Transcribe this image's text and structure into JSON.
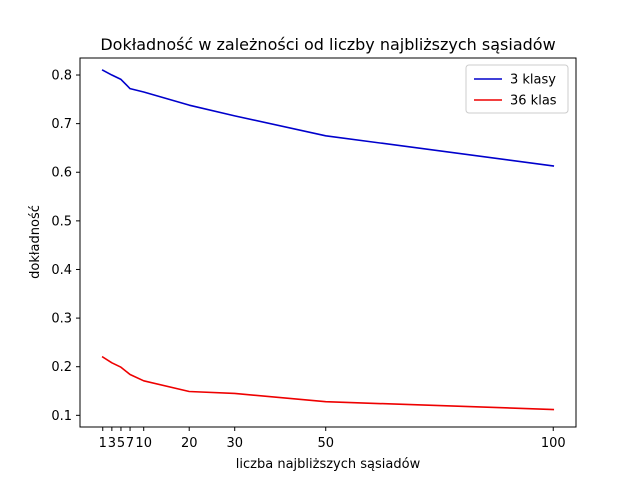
{
  "chart_data": {
    "type": "line",
    "title": "Dokładność w zależności od liczby najbliższych sąsiadów",
    "xlabel": "liczba najbliższych sąsiadów",
    "ylabel": "dokładność",
    "x": [
      1,
      3,
      5,
      7,
      10,
      20,
      30,
      50,
      100
    ],
    "xticks": [
      1,
      3,
      5,
      7,
      10,
      20,
      30,
      50,
      100
    ],
    "xtick_labels": [
      "1",
      "3",
      "5",
      "7",
      "10",
      "20",
      "30",
      "50",
      "100"
    ],
    "xlim": [
      -4,
      105
    ],
    "yticks": [
      0.1,
      0.2,
      0.3,
      0.4,
      0.5,
      0.6,
      0.7,
      0.8
    ],
    "ytick_labels": [
      "0.1",
      "0.2",
      "0.3",
      "0.4",
      "0.5",
      "0.6",
      "0.7",
      "0.8"
    ],
    "ylim": [
      0.076,
      0.835
    ],
    "grid": false,
    "legend_position": "top-right",
    "series": [
      {
        "name": "3 klasy",
        "color": "#0000cc",
        "values": [
          0.81,
          0.8,
          0.791,
          0.772,
          0.765,
          0.738,
          0.716,
          0.675,
          0.613
        ]
      },
      {
        "name": "36 klas",
        "color": "#ee0000",
        "values": [
          0.22,
          0.208,
          0.199,
          0.184,
          0.171,
          0.149,
          0.145,
          0.128,
          0.112
        ]
      }
    ]
  }
}
